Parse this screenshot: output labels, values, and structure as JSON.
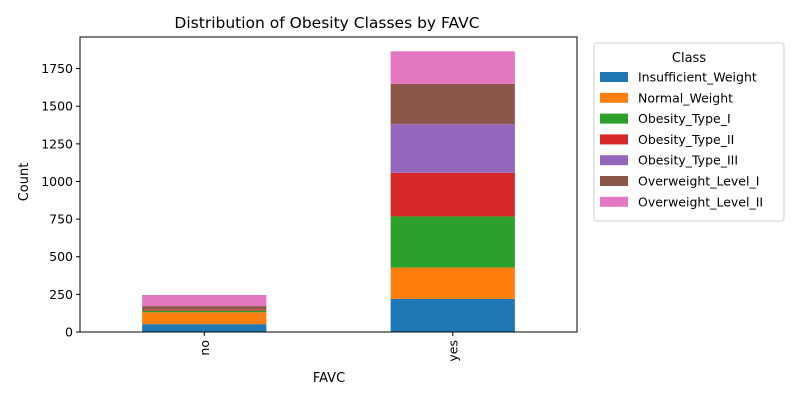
{
  "chart_data": {
    "type": "bar",
    "stacked": true,
    "title": "Distribution of Obesity Classes by FAVC",
    "xlabel": "FAVC",
    "ylabel": "Count",
    "categories": [
      "no",
      "yes"
    ],
    "ylim": [
      0,
      1960
    ],
    "yticks": [
      0,
      250,
      500,
      750,
      1000,
      1250,
      1500,
      1750
    ],
    "grid": false,
    "legend": {
      "title": "Class",
      "placement": "outside-right"
    },
    "series": [
      {
        "name": "Insufficient_Weight",
        "color": "#1f77b4",
        "values": [
          52,
          220
        ]
      },
      {
        "name": "Normal_Weight",
        "color": "#ff7f0e",
        "values": [
          79,
          208
        ]
      },
      {
        "name": "Obesity_Type_I",
        "color": "#2ca02c",
        "values": [
          11,
          340
        ]
      },
      {
        "name": "Obesity_Type_II",
        "color": "#d62728",
        "values": [
          7,
          290
        ]
      },
      {
        "name": "Obesity_Type_III",
        "color": "#9467bd",
        "values": [
          1,
          323
        ]
      },
      {
        "name": "Overweight_Level_I",
        "color": "#8c564b",
        "values": [
          22,
          268
        ]
      },
      {
        "name": "Overweight_Level_II",
        "color": "#e377c2",
        "values": [
          74,
          216
        ]
      }
    ]
  }
}
